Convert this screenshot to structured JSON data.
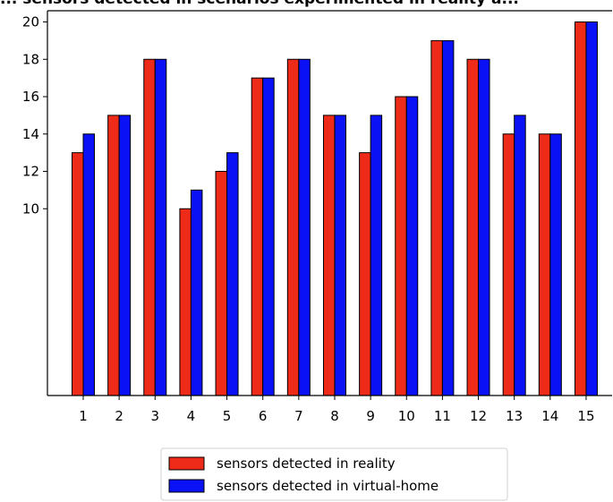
{
  "chart_data": {
    "type": "bar",
    "title": "... sensors detected in scenarios experimented in reality a...",
    "xlabel": "",
    "ylabel": "",
    "categories": [
      "1",
      "2",
      "3",
      "4",
      "5",
      "6",
      "7",
      "8",
      "9",
      "10",
      "11",
      "12",
      "13",
      "14",
      "15"
    ],
    "series": [
      {
        "name": "sensors detected in reality",
        "color": "#ee2a19",
        "values": [
          13,
          15,
          18,
          10,
          12,
          17,
          18,
          15,
          13,
          16,
          19,
          18,
          14,
          14,
          20
        ]
      },
      {
        "name": "sensors detected in virtual-home",
        "color": "#0a12f5",
        "values": [
          14,
          15,
          18,
          11,
          13,
          17,
          18,
          15,
          15,
          16,
          19,
          18,
          15,
          14,
          20
        ]
      }
    ],
    "yticks": [
      10,
      12,
      14,
      16,
      18,
      20
    ],
    "ylim": [
      0,
      20.6
    ],
    "grid": false,
    "legend_position": "bottom-center"
  }
}
